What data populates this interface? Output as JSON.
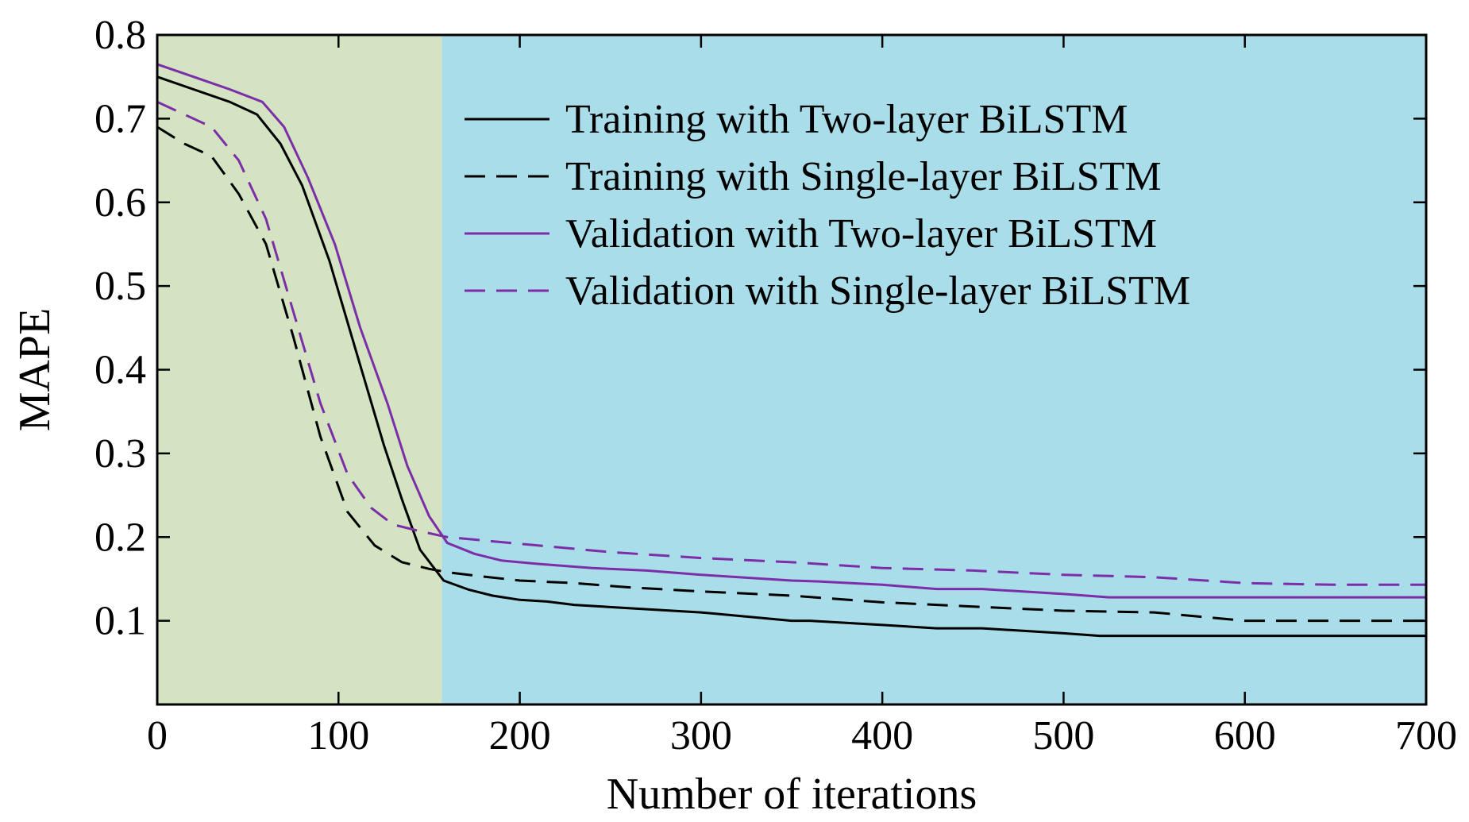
{
  "chart_data": {
    "type": "line",
    "title": "",
    "xlabel": "Number of iterations",
    "ylabel": "MAPE",
    "xlim": [
      0,
      700
    ],
    "ylim": [
      0,
      0.8
    ],
    "xticks": [
      0,
      100,
      200,
      300,
      400,
      500,
      600,
      700
    ],
    "yticks": [
      0.1,
      0.2,
      0.3,
      0.4,
      0.5,
      0.6,
      0.7,
      0.8
    ],
    "xtick_labels": [
      "0",
      "100",
      "200",
      "300",
      "400",
      "500",
      "600",
      "700"
    ],
    "ytick_labels": [
      "0.1",
      "0.2",
      "0.3",
      "0.4",
      "0.5",
      "0.6",
      "0.7",
      "0.8"
    ],
    "grid": false,
    "legend_position": "top-right",
    "shaded_regions": [
      {
        "x_start": 0,
        "x_end": 157,
        "color": "#d4e3c1"
      },
      {
        "x_start": 157,
        "x_end": 700,
        "color": "#a8dde9"
      }
    ],
    "series": [
      {
        "name": "Training with Two-layer BiLSTM",
        "color": "#000000",
        "dash": "solid",
        "x": [
          0,
          20,
          40,
          55,
          68,
          80,
          95,
          110,
          125,
          135,
          145,
          158,
          172,
          185,
          200,
          215,
          230,
          260,
          300,
          350,
          360,
          400,
          430,
          455,
          500,
          520,
          560,
          600,
          650,
          700
        ],
        "y": [
          0.75,
          0.735,
          0.72,
          0.705,
          0.67,
          0.62,
          0.53,
          0.42,
          0.31,
          0.245,
          0.185,
          0.148,
          0.137,
          0.13,
          0.125,
          0.123,
          0.119,
          0.115,
          0.11,
          0.1,
          0.1,
          0.095,
          0.091,
          0.091,
          0.085,
          0.082,
          0.082,
          0.082,
          0.082,
          0.082
        ]
      },
      {
        "name": "Training with Single-layer BiLSTM",
        "color": "#000000",
        "dash": "dashed",
        "x": [
          0,
          15,
          30,
          45,
          60,
          75,
          90,
          105,
          120,
          135,
          150,
          160,
          175,
          200,
          230,
          260,
          300,
          350,
          400,
          450,
          500,
          550,
          600,
          650,
          700
        ],
        "y": [
          0.69,
          0.67,
          0.655,
          0.61,
          0.55,
          0.44,
          0.32,
          0.23,
          0.19,
          0.17,
          0.162,
          0.158,
          0.154,
          0.148,
          0.145,
          0.14,
          0.135,
          0.13,
          0.122,
          0.117,
          0.112,
          0.11,
          0.1,
          0.1,
          0.1
        ]
      },
      {
        "name": "Validation with Two-layer BiLSTM",
        "color": "#7b2ea8",
        "dash": "solid",
        "x": [
          0,
          20,
          40,
          58,
          70,
          83,
          98,
          112,
          127,
          138,
          150,
          160,
          175,
          190,
          210,
          240,
          270,
          300,
          350,
          365,
          400,
          430,
          455,
          500,
          525,
          560,
          600,
          650,
          700
        ],
        "y": [
          0.765,
          0.75,
          0.735,
          0.72,
          0.69,
          0.63,
          0.55,
          0.45,
          0.36,
          0.285,
          0.225,
          0.193,
          0.18,
          0.172,
          0.168,
          0.163,
          0.16,
          0.155,
          0.148,
          0.147,
          0.143,
          0.138,
          0.138,
          0.132,
          0.128,
          0.128,
          0.128,
          0.128,
          0.128
        ]
      },
      {
        "name": "Validation with Single-layer BiLSTM",
        "color": "#7b2ea8",
        "dash": "dashed",
        "x": [
          0,
          15,
          30,
          45,
          60,
          75,
          90,
          105,
          118,
          130,
          145,
          160,
          180,
          210,
          250,
          300,
          350,
          400,
          450,
          500,
          550,
          600,
          650,
          700
        ],
        "y": [
          0.72,
          0.705,
          0.69,
          0.65,
          0.58,
          0.47,
          0.36,
          0.275,
          0.235,
          0.215,
          0.207,
          0.2,
          0.196,
          0.19,
          0.182,
          0.175,
          0.17,
          0.163,
          0.16,
          0.155,
          0.152,
          0.145,
          0.143,
          0.143
        ]
      }
    ]
  }
}
